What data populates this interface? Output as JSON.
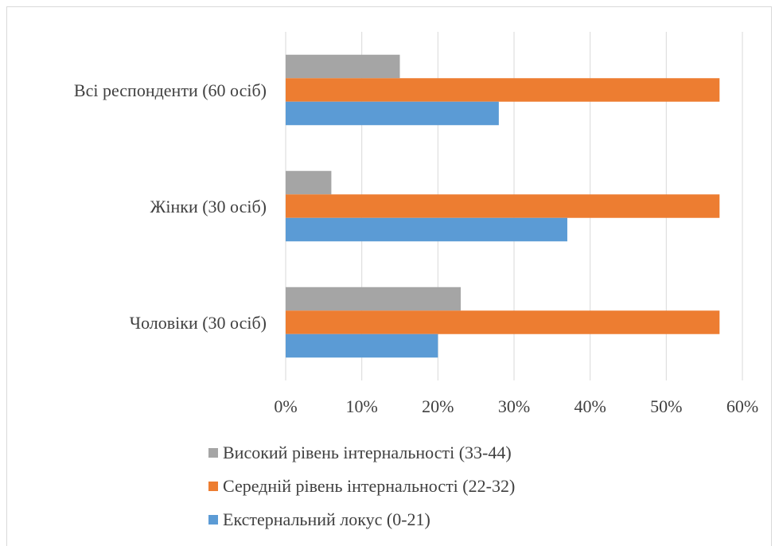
{
  "chart_data": {
    "type": "bar",
    "orientation": "horizontal",
    "categories": [
      "Всі респонденти (60 осіб)",
      "Жінки (30 осіб)",
      "Чоловіки (30 осіб)"
    ],
    "series": [
      {
        "name": "Високий рівень інтернальності (33-44)",
        "color": "#a5a5a5",
        "values": [
          15,
          6,
          23
        ]
      },
      {
        "name": "Середній рівень інтернальності (22-32)",
        "color": "#ed7d31",
        "values": [
          57,
          57,
          57
        ]
      },
      {
        "name": "Екстернальний локус (0-21)",
        "color": "#5b9bd5",
        "values": [
          28,
          37,
          20
        ]
      }
    ],
    "xlim": [
      0,
      60
    ],
    "xticks": [
      0,
      10,
      20,
      30,
      40,
      50,
      60
    ],
    "xtick_labels": [
      "0%",
      "10%",
      "20%",
      "30%",
      "40%",
      "50%",
      "60%"
    ],
    "grid": true,
    "legend_position": "bottom"
  }
}
